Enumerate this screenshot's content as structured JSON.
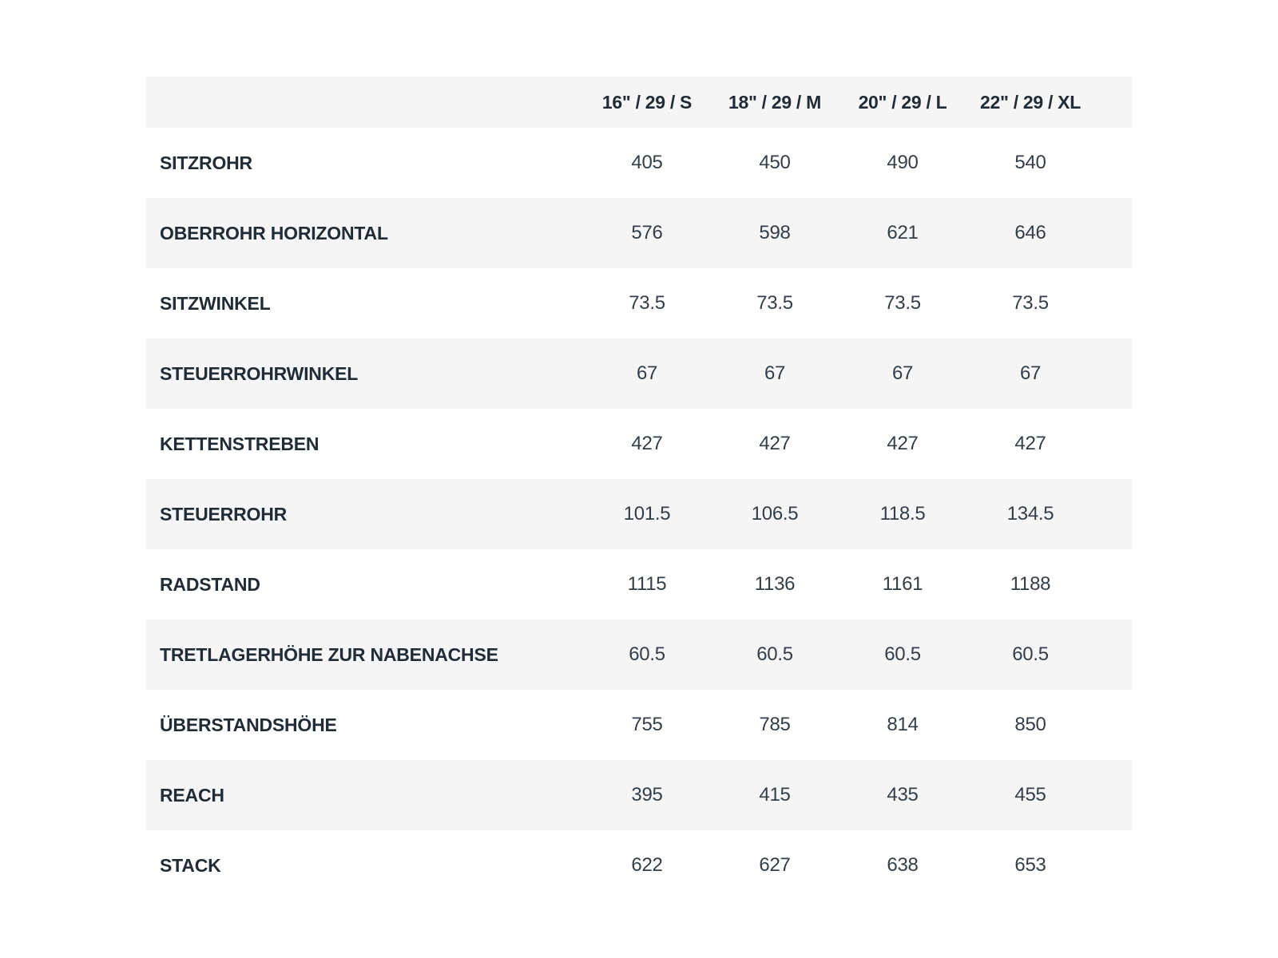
{
  "colors": {
    "background": "#ffffff",
    "stripe": "#f5f5f6",
    "label_text": "#222c36",
    "value_text": "#333e48"
  },
  "table": {
    "columns": [
      "16\" / 29 / S",
      "18\" / 29 / M",
      "20\" / 29 / L",
      "22\" / 29 / XL"
    ],
    "rows": [
      {
        "label": "SITZROHR",
        "values": [
          "405",
          "450",
          "490",
          "540"
        ]
      },
      {
        "label": "OBERROHR HORIZONTAL",
        "values": [
          "576",
          "598",
          "621",
          "646"
        ]
      },
      {
        "label": "SITZWINKEL",
        "values": [
          "73.5",
          "73.5",
          "73.5",
          "73.5"
        ]
      },
      {
        "label": "STEUERROHRWINKEL",
        "values": [
          "67",
          "67",
          "67",
          "67"
        ]
      },
      {
        "label": "KETTENSTREBEN",
        "values": [
          "427",
          "427",
          "427",
          "427"
        ]
      },
      {
        "label": "STEUERROHR",
        "values": [
          "101.5",
          "106.5",
          "118.5",
          "134.5"
        ]
      },
      {
        "label": "RADSTAND",
        "values": [
          "1115",
          "1136",
          "1161",
          "1188"
        ]
      },
      {
        "label": "TRETLAGERHÖHE ZUR NABENACHSE",
        "values": [
          "60.5",
          "60.5",
          "60.5",
          "60.5"
        ]
      },
      {
        "label": "ÜBERSTANDSHÖHE",
        "values": [
          "755",
          "785",
          "814",
          "850"
        ]
      },
      {
        "label": "REACH",
        "values": [
          "395",
          "415",
          "435",
          "455"
        ]
      },
      {
        "label": "STACK",
        "values": [
          "622",
          "627",
          "638",
          "653"
        ]
      }
    ]
  },
  "chart_data": {
    "type": "table",
    "title": "",
    "columns": [
      "16\" / 29 / S",
      "18\" / 29 / M",
      "20\" / 29 / L",
      "22\" / 29 / XL"
    ],
    "row_labels": [
      "SITZROHR",
      "OBERROHR HORIZONTAL",
      "SITZWINKEL",
      "STEUERROHRWINKEL",
      "KETTENSTREBEN",
      "STEUERROHR",
      "RADSTAND",
      "TRETLAGERHÖHE ZUR NABENACHSE",
      "ÜBERSTANDSHÖHE",
      "REACH",
      "STACK"
    ],
    "values": [
      [
        405,
        450,
        490,
        540
      ],
      [
        576,
        598,
        621,
        646
      ],
      [
        73.5,
        73.5,
        73.5,
        73.5
      ],
      [
        67,
        67,
        67,
        67
      ],
      [
        427,
        427,
        427,
        427
      ],
      [
        101.5,
        106.5,
        118.5,
        134.5
      ],
      [
        1115,
        1136,
        1161,
        1188
      ],
      [
        60.5,
        60.5,
        60.5,
        60.5
      ],
      [
        755,
        785,
        814,
        850
      ],
      [
        395,
        415,
        435,
        455
      ],
      [
        622,
        627,
        638,
        653
      ]
    ]
  }
}
